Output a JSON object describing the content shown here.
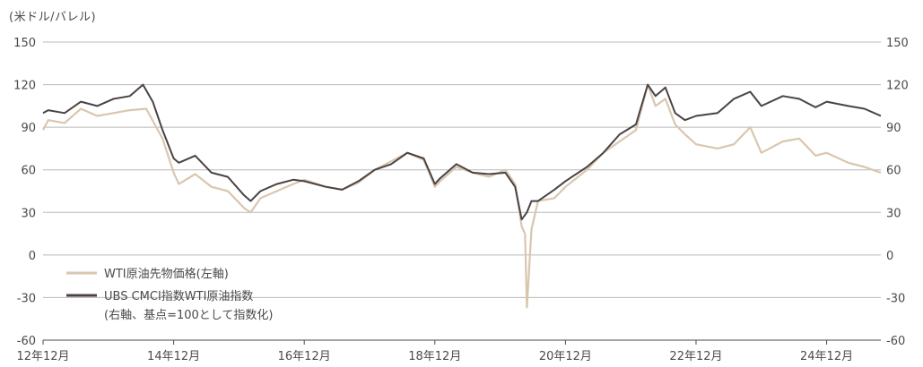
{
  "chart_data": {
    "type": "line",
    "unit_label": "(米ドル/バレル)",
    "x_labels": [
      "12年12月",
      "14年12月",
      "16年12月",
      "18年12月",
      "20年12月",
      "22年12月",
      "24年12月"
    ],
    "x_range": [
      2012.92,
      2025.75
    ],
    "ylim_left": [
      -60,
      150
    ],
    "ylim_right": [
      -60,
      150
    ],
    "y_ticks": [
      -60,
      -30,
      0,
      30,
      60,
      90,
      120,
      150
    ],
    "grid": true,
    "legend_position": "bottom-left",
    "legend_note": "(右軸、基点=100として指数化)",
    "series": [
      {
        "name": "WTI原油先物価格(左軸)",
        "axis": "left",
        "color": "#d9c6b0",
        "x": [
          2012.92,
          2013.0,
          2013.25,
          2013.5,
          2013.75,
          2014.0,
          2014.25,
          2014.5,
          2014.75,
          2014.92,
          2015.0,
          2015.25,
          2015.5,
          2015.75,
          2016.0,
          2016.1,
          2016.25,
          2016.5,
          2016.75,
          2016.92,
          2017.25,
          2017.5,
          2017.75,
          2018.0,
          2018.25,
          2018.5,
          2018.75,
          2018.92,
          2019.0,
          2019.25,
          2019.5,
          2019.75,
          2020.0,
          2020.15,
          2020.25,
          2020.3,
          2020.33,
          2020.4,
          2020.5,
          2020.75,
          2020.92,
          2021.25,
          2021.5,
          2021.75,
          2022.0,
          2022.18,
          2022.3,
          2022.45,
          2022.6,
          2022.75,
          2022.92,
          2023.25,
          2023.5,
          2023.75,
          2023.92,
          2024.25,
          2024.5,
          2024.75,
          2024.92,
          2025.25,
          2025.5,
          2025.75
        ],
        "values": [
          88,
          95,
          93,
          103,
          98,
          100,
          102,
          103,
          82,
          58,
          50,
          57,
          48,
          45,
          33,
          30,
          40,
          45,
          50,
          53,
          48,
          46,
          51,
          60,
          66,
          72,
          67,
          48,
          52,
          62,
          58,
          55,
          60,
          50,
          20,
          15,
          -37,
          18,
          38,
          40,
          48,
          60,
          72,
          80,
          88,
          120,
          105,
          110,
          92,
          85,
          78,
          75,
          78,
          90,
          72,
          80,
          82,
          70,
          72,
          65,
          62,
          58
        ]
      },
      {
        "name": "UBS CMCI指数WTI原油指数",
        "axis": "right",
        "color": "#4a4342",
        "x": [
          2012.92,
          2013.0,
          2013.25,
          2013.5,
          2013.75,
          2014.0,
          2014.25,
          2014.45,
          2014.6,
          2014.75,
          2014.92,
          2015.0,
          2015.25,
          2015.5,
          2015.75,
          2016.0,
          2016.1,
          2016.25,
          2016.5,
          2016.75,
          2016.92,
          2017.25,
          2017.5,
          2017.75,
          2018.0,
          2018.25,
          2018.5,
          2018.75,
          2018.92,
          2019.0,
          2019.25,
          2019.5,
          2019.75,
          2020.0,
          2020.15,
          2020.25,
          2020.33,
          2020.4,
          2020.5,
          2020.75,
          2020.92,
          2021.25,
          2021.5,
          2021.75,
          2022.0,
          2022.18,
          2022.3,
          2022.45,
          2022.6,
          2022.75,
          2022.92,
          2023.25,
          2023.5,
          2023.75,
          2023.92,
          2024.25,
          2024.5,
          2024.75,
          2024.92,
          2025.25,
          2025.5,
          2025.75
        ],
        "values": [
          100,
          102,
          100,
          108,
          105,
          110,
          112,
          120,
          108,
          88,
          68,
          65,
          70,
          58,
          55,
          42,
          38,
          45,
          50,
          53,
          52,
          48,
          46,
          52,
          60,
          64,
          72,
          68,
          50,
          54,
          64,
          58,
          57,
          58,
          48,
          25,
          30,
          38,
          38,
          46,
          52,
          62,
          72,
          85,
          92,
          120,
          112,
          118,
          100,
          95,
          98,
          100,
          110,
          115,
          105,
          112,
          110,
          104,
          108,
          105,
          103,
          98
        ]
      }
    ]
  }
}
